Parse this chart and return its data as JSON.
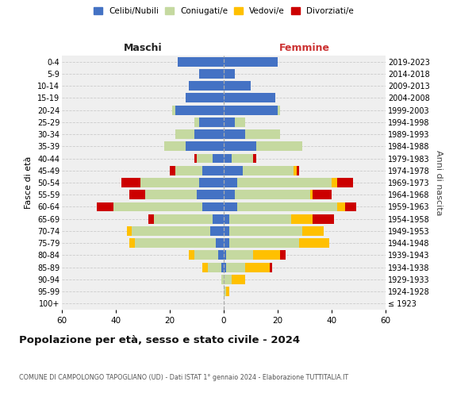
{
  "age_groups": [
    "100+",
    "95-99",
    "90-94",
    "85-89",
    "80-84",
    "75-79",
    "70-74",
    "65-69",
    "60-64",
    "55-59",
    "50-54",
    "45-49",
    "40-44",
    "35-39",
    "30-34",
    "25-29",
    "20-24",
    "15-19",
    "10-14",
    "5-9",
    "0-4"
  ],
  "birth_years": [
    "≤ 1923",
    "1924-1928",
    "1929-1933",
    "1934-1938",
    "1939-1943",
    "1944-1948",
    "1949-1953",
    "1954-1958",
    "1959-1963",
    "1964-1968",
    "1969-1973",
    "1974-1978",
    "1979-1983",
    "1984-1988",
    "1989-1993",
    "1994-1998",
    "1999-2003",
    "2004-2008",
    "2009-2013",
    "2014-2018",
    "2019-2023"
  ],
  "maschi": {
    "celibi": [
      0,
      0,
      0,
      1,
      2,
      3,
      5,
      4,
      8,
      10,
      9,
      8,
      4,
      14,
      11,
      9,
      18,
      14,
      13,
      9,
      17
    ],
    "coniugati": [
      0,
      0,
      1,
      5,
      9,
      30,
      29,
      22,
      33,
      19,
      22,
      10,
      6,
      8,
      7,
      2,
      1,
      0,
      0,
      0,
      0
    ],
    "vedovi": [
      0,
      0,
      0,
      2,
      2,
      2,
      2,
      0,
      0,
      0,
      0,
      0,
      0,
      0,
      0,
      0,
      0,
      0,
      0,
      0,
      0
    ],
    "divorziati": [
      0,
      0,
      0,
      0,
      0,
      0,
      0,
      2,
      6,
      6,
      7,
      2,
      1,
      0,
      0,
      0,
      0,
      0,
      0,
      0,
      0
    ]
  },
  "femmine": {
    "nubili": [
      0,
      0,
      0,
      1,
      1,
      2,
      2,
      2,
      5,
      4,
      5,
      7,
      3,
      12,
      8,
      4,
      20,
      19,
      10,
      4,
      20
    ],
    "coniugate": [
      0,
      1,
      3,
      7,
      10,
      26,
      27,
      23,
      37,
      28,
      35,
      19,
      8,
      17,
      13,
      4,
      1,
      0,
      0,
      0,
      0
    ],
    "vedove": [
      0,
      1,
      5,
      9,
      10,
      11,
      8,
      8,
      3,
      1,
      2,
      1,
      0,
      0,
      0,
      0,
      0,
      0,
      0,
      0,
      0
    ],
    "divorziate": [
      0,
      0,
      0,
      1,
      2,
      0,
      0,
      8,
      4,
      7,
      6,
      1,
      1,
      0,
      0,
      0,
      0,
      0,
      0,
      0,
      0
    ]
  },
  "colors": {
    "celibi": "#4472c4",
    "coniugati": "#c5d9a0",
    "vedovi": "#ffc000",
    "divorziati": "#cc0000"
  },
  "title": "Popolazione per età, sesso e stato civile - 2024",
  "subtitle": "COMUNE DI CAMPOLONGO TAPOGLIANO (UD) - Dati ISTAT 1° gennaio 2024 - Elaborazione TUTTITALIA.IT",
  "label_maschi": "Maschi",
  "label_femmine": "Femmine",
  "ylabel_left": "Fasce di età",
  "ylabel_right": "Anni di nascita",
  "xlim": 60,
  "legend_labels": [
    "Celibi/Nubili",
    "Coniugati/e",
    "Vedovi/e",
    "Divorziati/e"
  ],
  "bg_color": "#ffffff",
  "plot_bg": "#efefef",
  "grid_color": "#cccccc"
}
